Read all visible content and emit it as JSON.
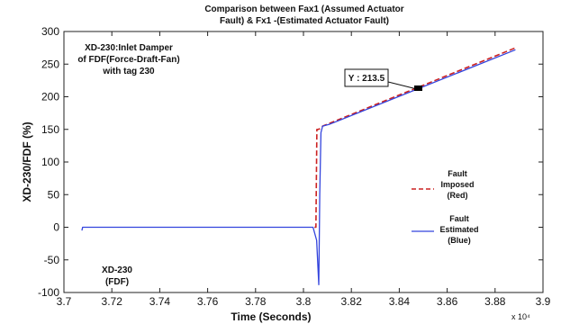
{
  "chart_data": {
    "type": "line",
    "title_lines": [
      "Comparison between Fax1 (Assumed Actuator",
      "Fault) & Fx1 -(Estimated Actuator Fault)"
    ],
    "xlabel": "Time (Seconds)",
    "ylabel": "XD-230/FDF (%)",
    "x_multiplier": "x 10⁴",
    "xlim": [
      3.7,
      3.9
    ],
    "ylim": [
      -100,
      300
    ],
    "xticks": [
      "3.7",
      "3.72",
      "3.74",
      "3.76",
      "3.78",
      "3.8",
      "3.82",
      "3.84",
      "3.86",
      "3.88",
      "3.9"
    ],
    "yticks": [
      "300",
      "250",
      "200",
      "150",
      "100",
      "50",
      "0",
      "-50",
      "-100"
    ],
    "grid": false,
    "legend_position": "right",
    "series": [
      {
        "name": "Fault Imposed (Red)",
        "color": "#cc2222",
        "dash": "dashed",
        "x": [
          3.8046,
          3.8052,
          3.8056,
          3.8062,
          3.8068,
          3.808,
          3.8885
        ],
        "y": [
          0,
          0,
          150,
          150,
          151,
          155,
          275
        ]
      },
      {
        "name": "Fault Estimated (Blue)",
        "color": "#3344dd",
        "dash": "solid",
        "x": [
          3.7075,
          3.7078,
          3.7085,
          3.76,
          3.804,
          3.8055,
          3.8064,
          3.8068,
          3.8073,
          3.808,
          3.811,
          3.8885
        ],
        "y": [
          -5,
          0,
          0,
          0,
          0,
          -20,
          -88,
          50,
          145,
          155,
          158,
          272
        ]
      }
    ],
    "annotations": {
      "tag_lines": [
        "XD-230:Inlet Damper",
        "of FDF(Force-Draft-Fan)",
        "with tag 230"
      ],
      "device_lines": [
        "XD-230",
        "(FDF)"
      ],
      "datatip": "Y : 213.5"
    },
    "legend": {
      "red_lines": [
        "Fault",
        "Imposed",
        "(Red)"
      ],
      "blue_lines": [
        "Fault",
        "Estimated",
        "(Blue)"
      ]
    }
  }
}
